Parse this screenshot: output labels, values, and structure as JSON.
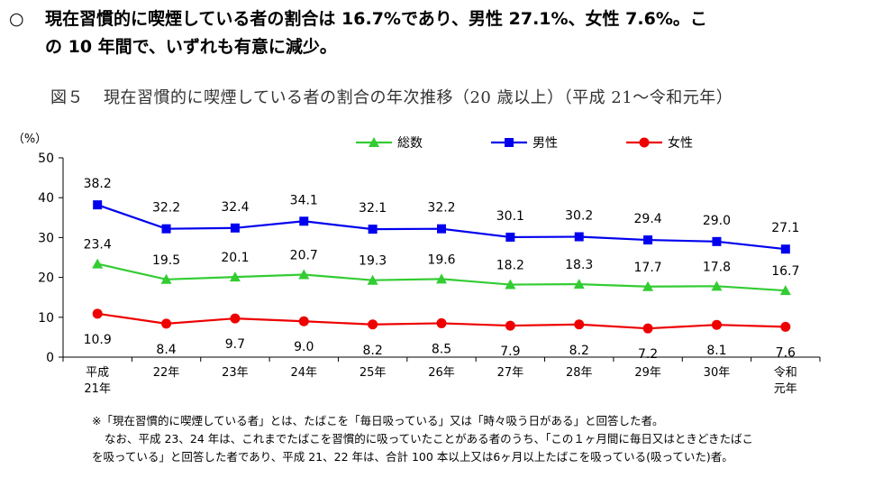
{
  "headline": {
    "bullet": "○",
    "line1": "現在習慣的に喫煙している者の割合は 16.7%であり、男性 27.1%、女性 7.6%。こ",
    "line2": "の 10 年間で、いずれも有意に減少。"
  },
  "figure": {
    "number": "図５",
    "title": "現在習慣的に喫煙している者の割合の年次推移（20 歳以上）（平成 21～令和元年）"
  },
  "chart_data": {
    "type": "line",
    "ylabel": "（%）",
    "ylim": [
      0,
      50
    ],
    "yticks": [
      "0",
      "10",
      "20",
      "30",
      "40",
      "50"
    ],
    "categories": [
      "平成\n21年",
      "22年",
      "23年",
      "24年",
      "25年",
      "26年",
      "27年",
      "28年",
      "29年",
      "30年",
      "令和\n元年"
    ],
    "series": [
      {
        "name": "総数",
        "color": "#33cc33",
        "marker": "triangle",
        "values": [
          23.4,
          19.5,
          20.1,
          20.7,
          19.3,
          19.6,
          18.2,
          18.3,
          17.7,
          17.8,
          16.7
        ],
        "labels": [
          "23.4",
          "19.5",
          "20.1",
          "20.7",
          "19.3",
          "19.6",
          "18.2",
          "18.3",
          "17.7",
          "17.8",
          "16.7"
        ]
      },
      {
        "name": "男性",
        "color": "#0000ee",
        "marker": "square",
        "values": [
          38.2,
          32.2,
          32.4,
          34.1,
          32.1,
          32.2,
          30.1,
          30.2,
          29.4,
          29.0,
          27.1
        ],
        "labels": [
          "38.2",
          "32.2",
          "32.4",
          "34.1",
          "32.1",
          "32.2",
          "30.1",
          "30.2",
          "29.4",
          "29.0",
          "27.1"
        ]
      },
      {
        "name": "女性",
        "color": "#ee0000",
        "marker": "circle",
        "values": [
          10.9,
          8.4,
          9.7,
          9.0,
          8.2,
          8.5,
          7.9,
          8.2,
          7.2,
          8.1,
          7.6
        ],
        "labels": [
          "10.9",
          "8.4",
          "9.7",
          "9.0",
          "8.2",
          "8.5",
          "7.9",
          "8.2",
          "7.2",
          "8.1",
          "7.6"
        ]
      }
    ],
    "legend_position": "top"
  },
  "notes": {
    "line1": "※「現在習慣的に喫煙している者」とは、たばこを「毎日吸っている」又は「時々吸う日がある」と回答した者。",
    "line2": "なお、平成 23、24 年は、これまでたばこを習慣的に吸っていたことがある者のうち、「この１ヶ月間に毎日又はときどきたばこ",
    "line3": "を吸っている」と回答した者であり、平成 21、22 年は、合計 100 本以上又は6ヶ月以上たばこを吸っている(吸っていた)者。"
  }
}
